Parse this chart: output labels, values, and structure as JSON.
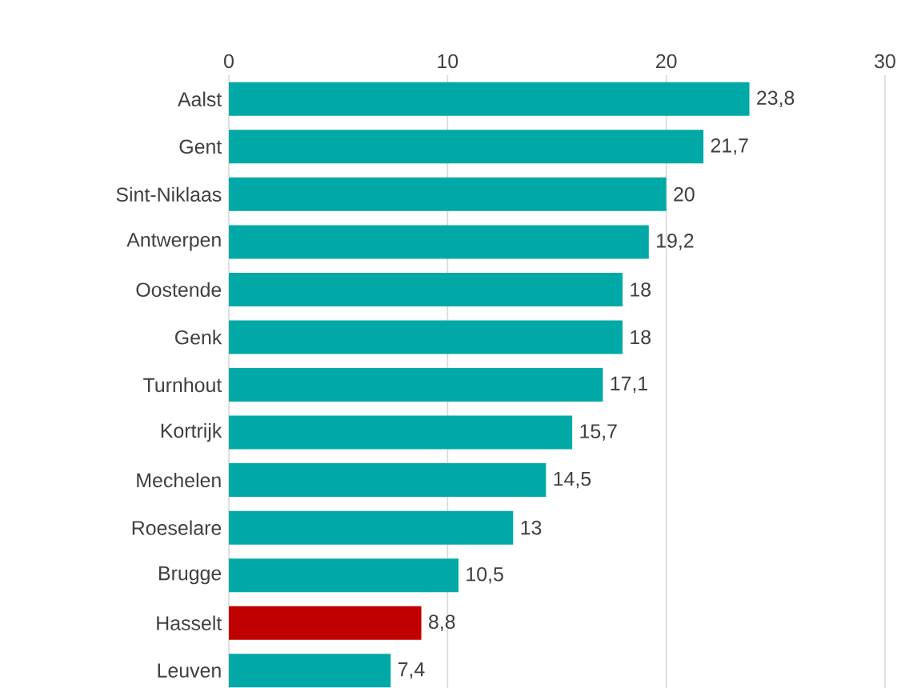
{
  "chart_data": {
    "type": "bar",
    "orientation": "horizontal",
    "categories": [
      "Aalst",
      "Gent",
      "Sint-Niklaas",
      "Antwerpen",
      "Oostende",
      "Genk",
      "Turnhout",
      "Kortrijk",
      "Mechelen",
      "Roeselare",
      "Brugge",
      "Hasselt",
      "Leuven"
    ],
    "values": [
      23.8,
      21.7,
      20,
      19.2,
      18,
      18,
      17.1,
      15.7,
      14.5,
      13,
      10.5,
      8.8,
      7.4
    ],
    "colors": [
      "#00a9a6",
      "#00a9a6",
      "#00a9a6",
      "#00a9a6",
      "#00a9a6",
      "#00a9a6",
      "#00a9a6",
      "#00a9a6",
      "#00a9a6",
      "#00a9a6",
      "#00a9a6",
      "#c00000",
      "#00a9a6"
    ],
    "value_labels": [
      "23,8",
      "21,7",
      "20",
      "19,2",
      "18",
      "18",
      "17,1",
      "15,7",
      "14,5",
      "13",
      "10,5",
      "8,8",
      "7,4"
    ],
    "xlim": [
      0,
      30
    ],
    "xticks": [
      0,
      10,
      20,
      30
    ],
    "grid": "x"
  }
}
